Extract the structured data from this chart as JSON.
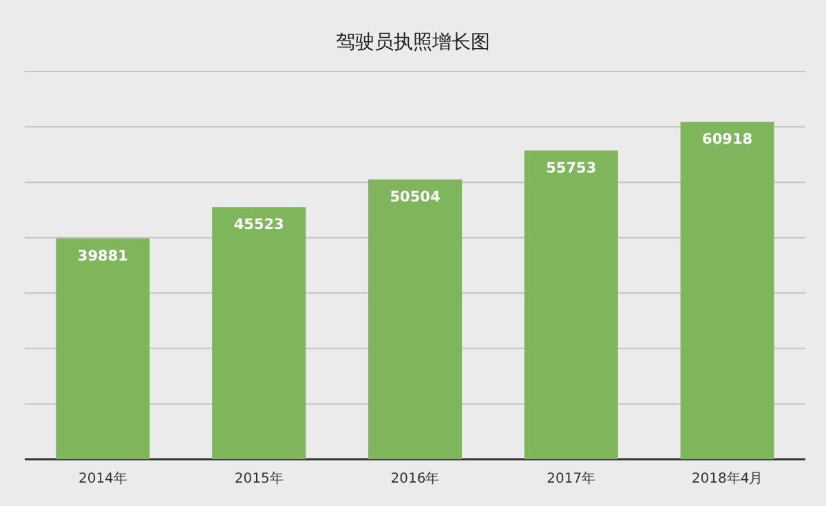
{
  "chart_data": {
    "type": "bar",
    "title": "驾驶员执照增长图",
    "categories": [
      "2014年",
      "2015年",
      "2016年",
      "2017年",
      "2018年4月"
    ],
    "values": [
      39881,
      45523,
      50504,
      55753,
      60918
    ],
    "color": "#7fb65c",
    "data_labels": true,
    "grid": "y",
    "tick_labels": "x",
    "ylim": [
      0,
      70000
    ],
    "yticks": [
      {
        "value": 0,
        "label": null
      },
      {
        "value": 10000,
        "label": null
      },
      {
        "value": 20000,
        "label": null
      },
      {
        "value": 30000,
        "label": null
      },
      {
        "value": 40000,
        "label": null
      },
      {
        "value": 50000,
        "label": null
      },
      {
        "value": 60000,
        "label": null
      },
      {
        "value": 70000,
        "label": null
      }
    ]
  }
}
